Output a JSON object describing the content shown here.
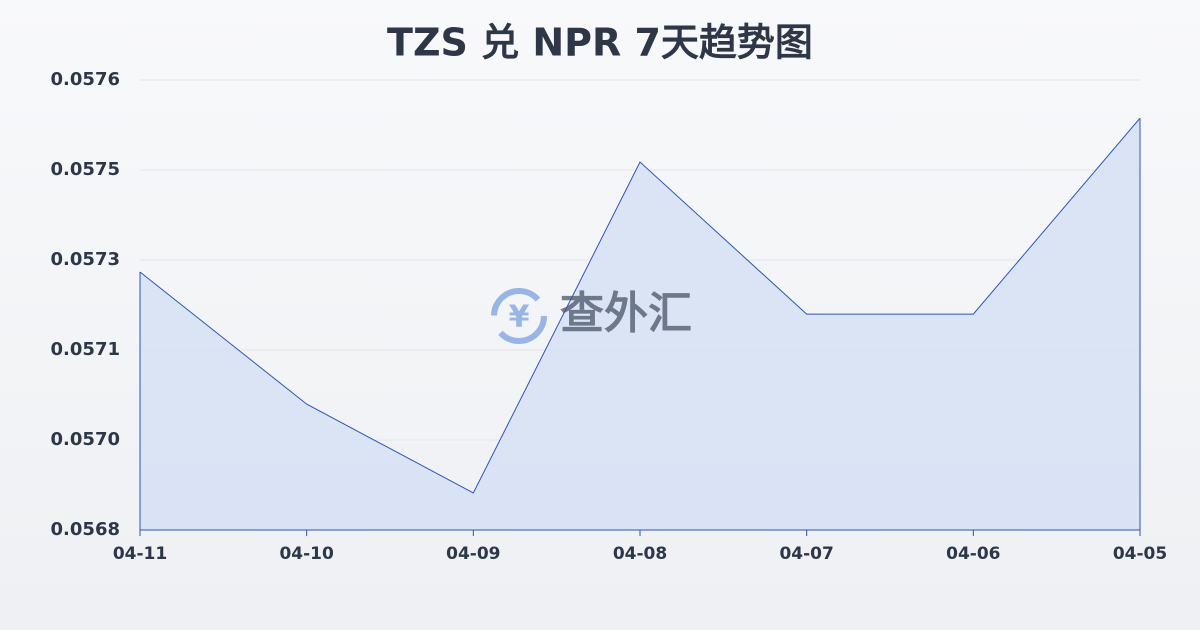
{
  "chart_data": {
    "type": "area",
    "title": "TZS 兑 NPR 7天趋势图",
    "categories": [
      "04-11",
      "04-10",
      "04-09",
      "04-08",
      "04-07",
      "04-06",
      "04-05"
    ],
    "values": [
      0.057273,
      0.057041,
      0.056885,
      0.057466,
      0.057199,
      0.057199,
      0.057543
    ],
    "color": "#2a56b8",
    "fill": "#d6e0f5",
    "ylim": [
      0.05682,
      0.05761
    ],
    "yticks": [
      {
        "value": 0.05682,
        "label": "0.0568"
      },
      {
        "value": 0.056978,
        "label": "0.0570"
      },
      {
        "value": 0.057136,
        "label": "0.0571"
      },
      {
        "value": 0.057294,
        "label": "0.0573"
      },
      {
        "value": 0.057452,
        "label": "0.0575"
      },
      {
        "value": 0.05761,
        "label": "0.0576"
      }
    ],
    "grid": true,
    "watermark": "查外汇"
  }
}
